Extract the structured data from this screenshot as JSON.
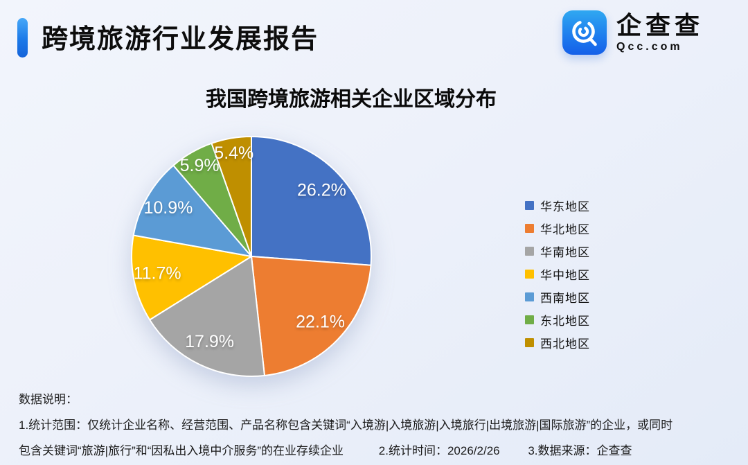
{
  "header": {
    "title": "跨境旅游行业发展报告",
    "logo": {
      "name": "企查查",
      "domain": "Qcc.com",
      "brand_color": "#1d7bee"
    }
  },
  "chart_data": {
    "type": "pie",
    "title": "我国跨境旅游相关企业区域分布",
    "categories": [
      "华东地区",
      "华北地区",
      "华南地区",
      "华中地区",
      "西南地区",
      "东北地区",
      "西北地区"
    ],
    "values": [
      26.2,
      22.1,
      17.9,
      11.7,
      10.9,
      5.9,
      5.4
    ],
    "labels": [
      "26.2%",
      "22.1%",
      "17.9%",
      "11.7%",
      "10.9%",
      "5.9%",
      "5.4%"
    ],
    "colors": [
      "#4472C4",
      "#ED7D31",
      "#A5A5A5",
      "#FFC000",
      "#5B9BD5",
      "#70AD47",
      "#BF8F00"
    ],
    "unit": "percent",
    "start_angle": 0,
    "direction": "clockwise",
    "legend_position": "right",
    "slice_label_color": "#ffffff"
  },
  "footnotes": {
    "heading": "数据说明：",
    "scope_line1": "1.统计范围：仅统计企业名称、经营范围、产品名称包含关键词“入境游|入境旅游|入境旅行|出境旅游|国际旅游”的企业，或同时",
    "scope_line2": "包含关键词“旅游|旅行”和“因私出入境中介服务”的在业存续企业",
    "time_note": "2.统计时间：2026/2/26",
    "source_note": "3.数据来源：企查查"
  }
}
